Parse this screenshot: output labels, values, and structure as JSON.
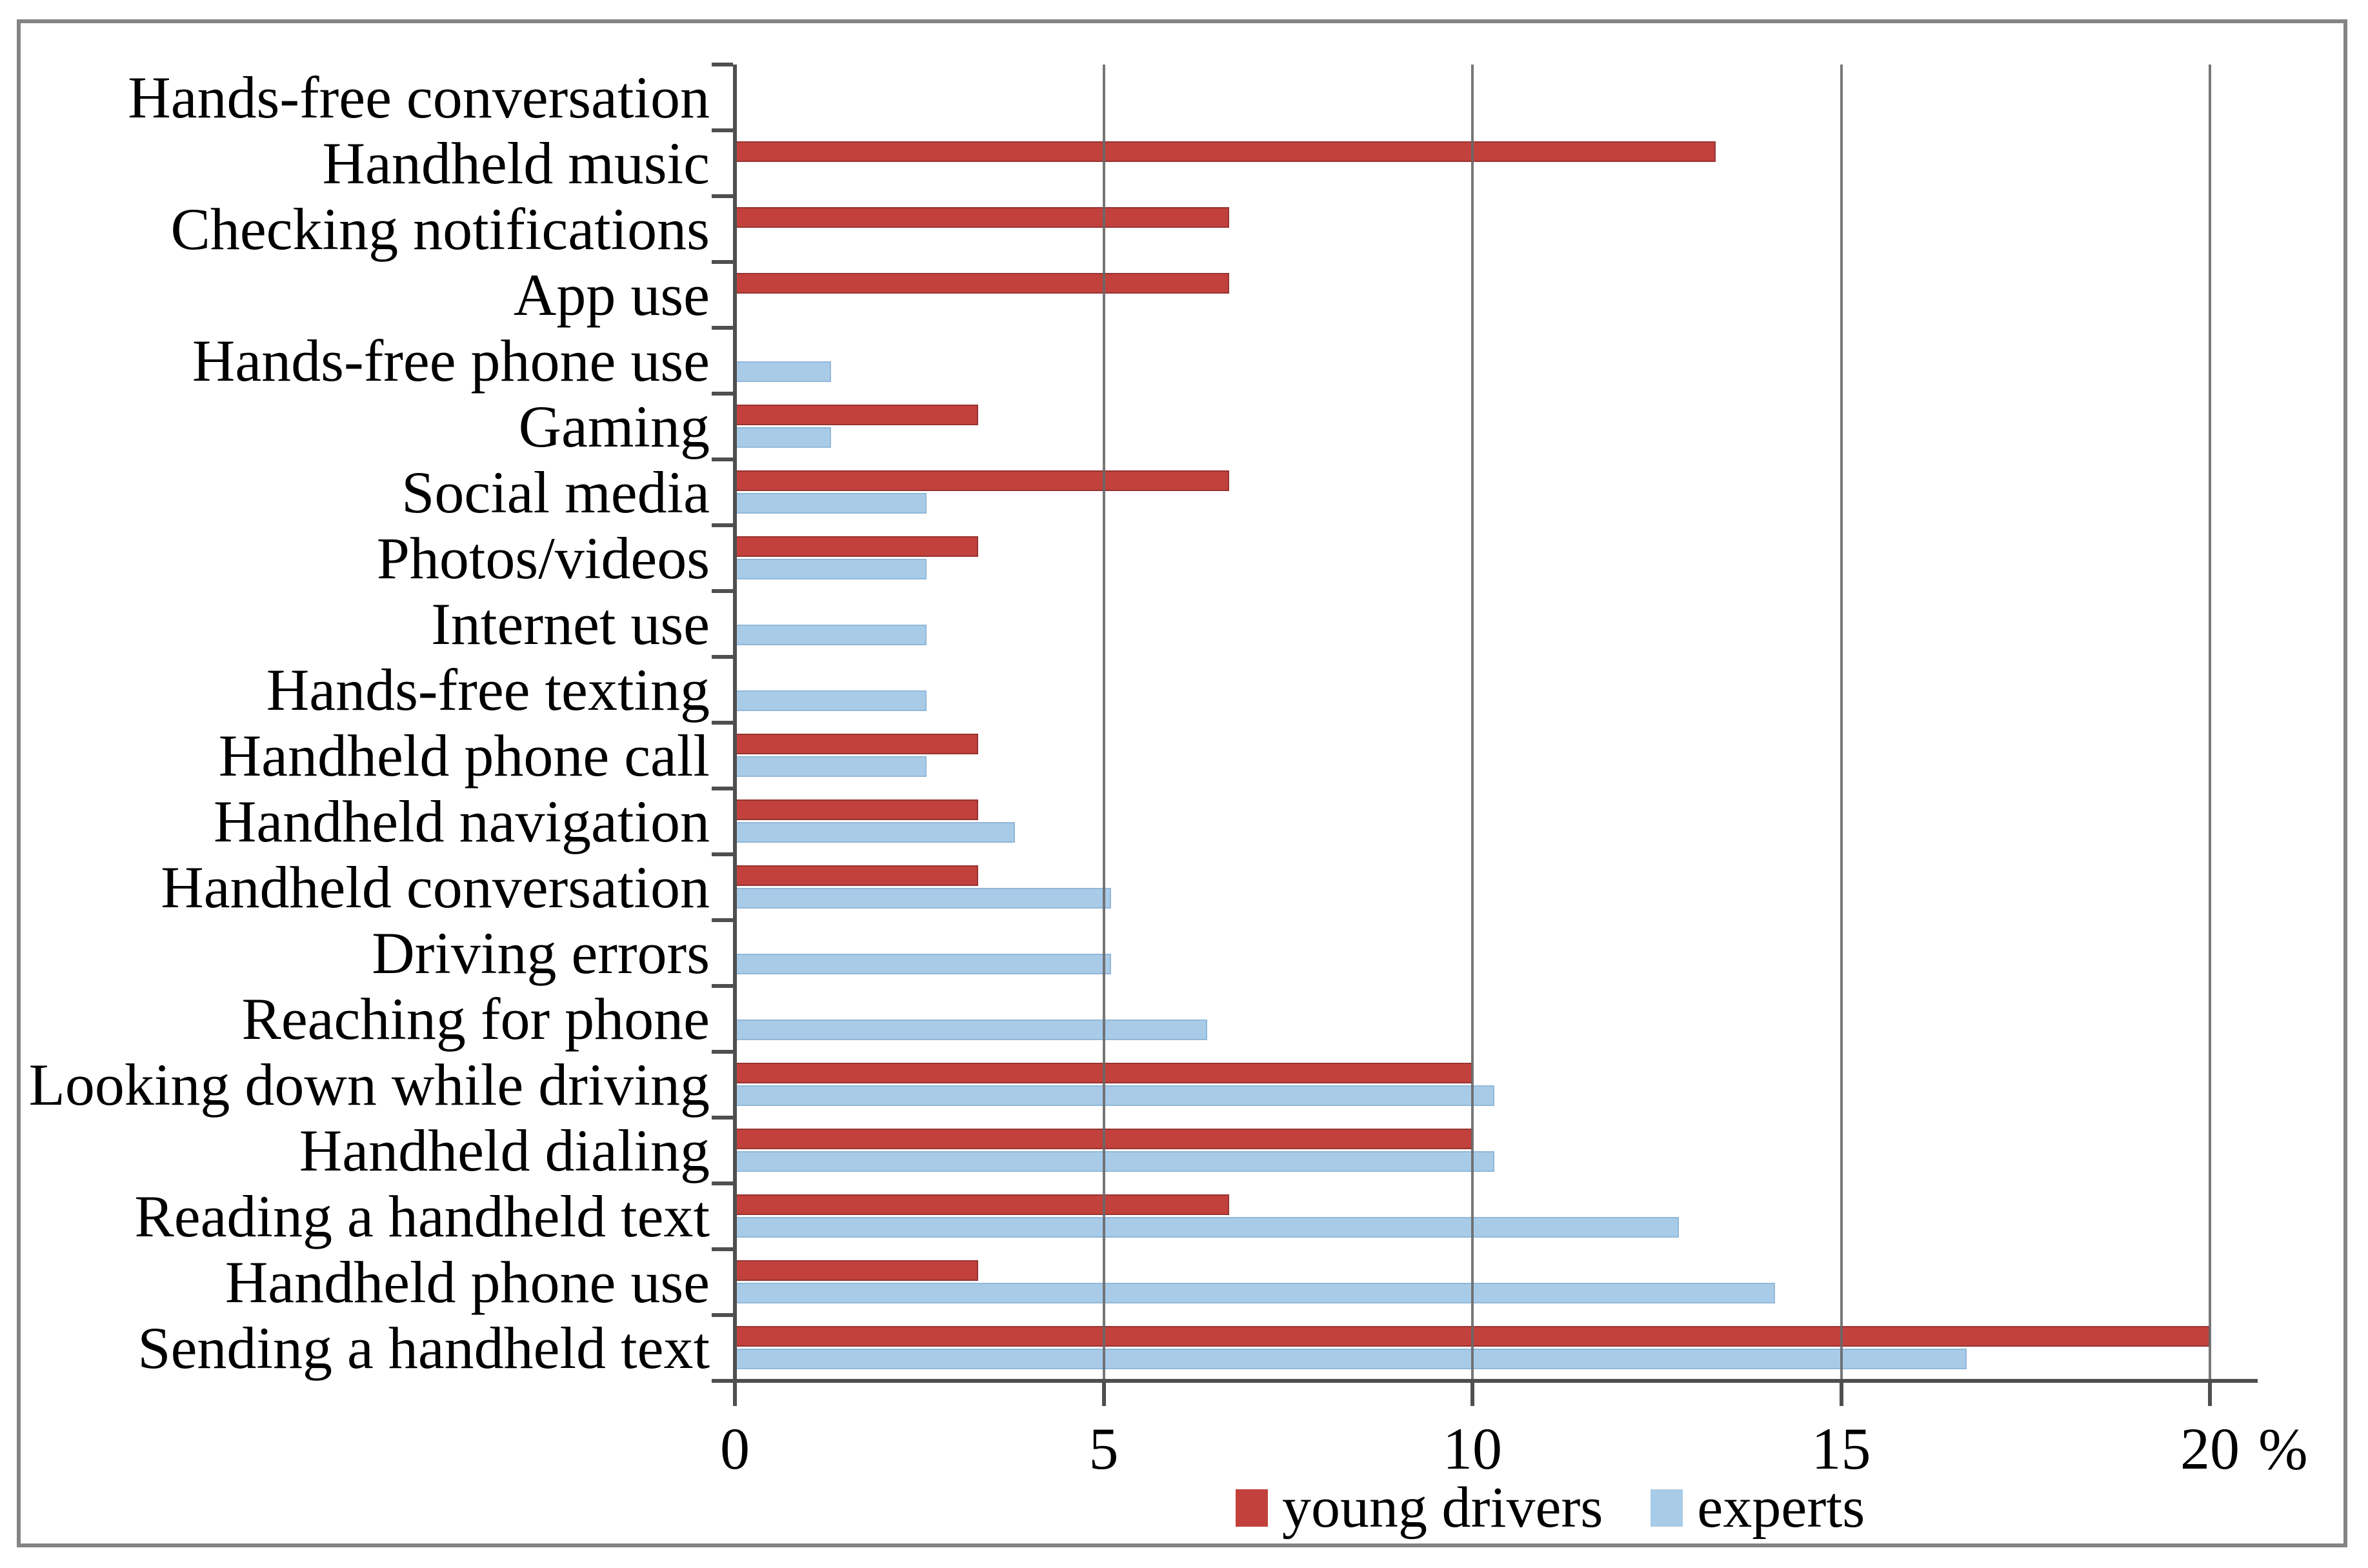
{
  "figure": {
    "background": "#ffffff",
    "border_color": "#848484"
  },
  "chart_data": {
    "type": "bar",
    "orientation": "horizontal",
    "title": "",
    "xlabel": "%",
    "ylabel": "",
    "xlim": [
      0,
      20
    ],
    "xticks": [
      0,
      5,
      10,
      15,
      20
    ],
    "grid": "vertical gridlines at 5, 10, 15, 20 drawn over bars",
    "legend_position": "bottom-center",
    "categories": [
      "Hands-free conversation",
      "Handheld music",
      "Checking notifications",
      "App use",
      "Hands-free phone use",
      "Gaming",
      "Social media",
      "Photos/videos",
      "Internet use",
      "Hands-free texting",
      "Handheld phone call",
      "Handheld navigation",
      "Handheld conversation",
      "Driving errors",
      "Reaching for phone",
      "Looking down while driving",
      "Handheld dialing",
      "Reading a handheld text",
      "Handheld phone use",
      "Sending a handheld text"
    ],
    "series": [
      {
        "name": "young drivers",
        "color": "#c2413d",
        "border_color": "#973431",
        "values": [
          0,
          13.3,
          6.7,
          6.7,
          0,
          3.3,
          6.7,
          3.3,
          0,
          0,
          3.3,
          3.3,
          3.3,
          0,
          0,
          10,
          10,
          6.7,
          3.3,
          20
        ]
      },
      {
        "name": "experts",
        "color": "#a8cbe8",
        "border_color": "#92b8d8",
        "values": [
          0,
          0,
          0,
          0,
          1.3,
          1.3,
          2.6,
          2.6,
          2.6,
          2.6,
          2.6,
          3.8,
          5.1,
          5.1,
          6.4,
          10.3,
          10.3,
          12.8,
          14.1,
          16.7
        ]
      }
    ]
  }
}
